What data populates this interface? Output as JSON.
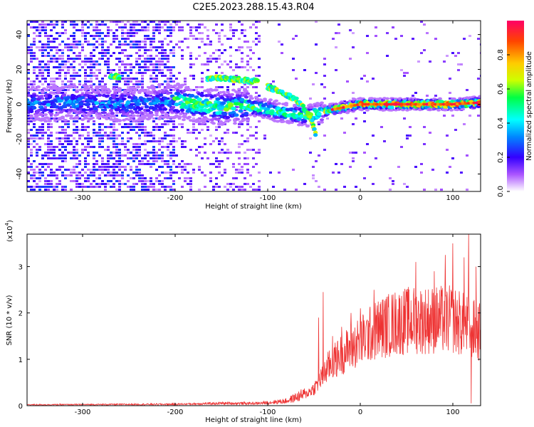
{
  "title": "C2E5.2023.288.15.43.R04",
  "chart_data": [
    {
      "type": "heatmap",
      "xlabel": "Height of straight line (km)",
      "ylabel": "Frequency (Hz)",
      "xlim": [
        -360,
        130
      ],
      "ylim": [
        -50,
        48
      ],
      "xticks": [
        -300,
        -200,
        -100,
        0,
        100
      ],
      "yticks": [
        -40,
        -20,
        0,
        20,
        40
      ],
      "colorbar": {
        "label": "Normalized spectral amplitude",
        "range": [
          0,
          1
        ],
        "ticks": [
          0.0,
          0.2,
          0.4,
          0.6,
          0.8
        ],
        "tick_labels": [
          "0.0",
          "0.2",
          "0.4",
          "0.6",
          "0.8"
        ],
        "colormap": "rainbow"
      },
      "traces": [
        {
          "x": [
            -360,
            -300,
            -250,
            -200,
            -180,
            -150,
            -120,
            -100,
            -80,
            -60,
            -45,
            -30,
            0,
            50,
            100,
            130
          ],
          "y": [
            0,
            1,
            0,
            2,
            0,
            -2,
            -1,
            -3,
            -5,
            -7,
            -5,
            -3,
            0,
            0,
            0,
            1
          ]
        },
        {
          "x": [
            -165,
            -150,
            -130,
            -110
          ],
          "y": [
            15,
            15,
            14,
            13
          ]
        },
        {
          "x": [
            -100,
            -85,
            -70,
            -60,
            -52,
            -48
          ],
          "y": [
            10,
            7,
            3,
            -3,
            -10,
            -18
          ]
        },
        {
          "x": [
            -270,
            -260
          ],
          "y": [
            16,
            16
          ]
        }
      ]
    },
    {
      "type": "line",
      "xlabel": "Height of straight line (km)",
      "ylabel": "SNR (10 * v/v)",
      "multiplier_label": "(x10",
      "multiplier_exp": "4",
      "multiplier_close": ")",
      "color": "#ee3333",
      "xlim": [
        -360,
        130
      ],
      "ylim": [
        0,
        3.7
      ],
      "xticks": [
        -300,
        -200,
        -100,
        0,
        100
      ],
      "yticks": [
        0,
        1,
        2,
        3
      ],
      "envelope": {
        "x": [
          -360,
          -200,
          -150,
          -110,
          -80,
          -60,
          -50,
          -40,
          -35,
          -30,
          -20,
          0,
          20,
          40,
          60,
          80,
          100,
          110,
          120,
          130
        ],
        "y": [
          0.02,
          0.03,
          0.05,
          0.05,
          0.1,
          0.25,
          0.4,
          0.7,
          0.9,
          1.0,
          1.2,
          1.5,
          1.8,
          1.95,
          2.0,
          2.0,
          2.0,
          1.9,
          1.8,
          1.7
        ]
      },
      "peaks": [
        [
          -40,
          2.45
        ],
        [
          -45,
          1.9
        ],
        [
          -30,
          1.5
        ],
        [
          -20,
          1.7
        ],
        [
          -10,
          2.0
        ],
        [
          0,
          2.1
        ],
        [
          15,
          2.5
        ],
        [
          60,
          3.1
        ],
        [
          80,
          2.9
        ],
        [
          92,
          3.25
        ],
        [
          100,
          3.5
        ],
        [
          112,
          3.2
        ],
        [
          117,
          3.7
        ],
        [
          125,
          3.0
        ]
      ]
    }
  ]
}
